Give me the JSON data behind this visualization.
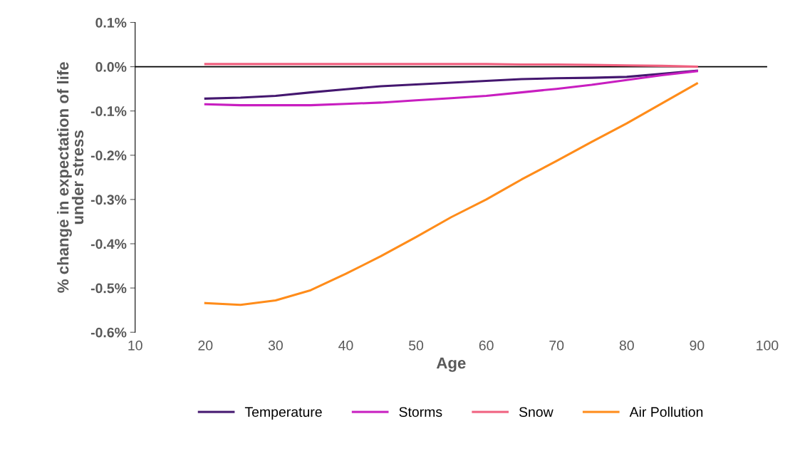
{
  "chart_data": {
    "type": "line",
    "xlabel": "Age",
    "ylabel": "% change in expectation of life\nunder stress",
    "x": [
      20,
      25,
      30,
      35,
      40,
      45,
      50,
      55,
      60,
      65,
      70,
      75,
      80,
      85,
      90
    ],
    "series": [
      {
        "name": "Temperature",
        "color": "#44176f",
        "values": [
          -0.072,
          -0.07,
          -0.066,
          -0.058,
          -0.051,
          -0.044,
          -0.04,
          -0.036,
          -0.032,
          -0.028,
          -0.026,
          -0.025,
          -0.023,
          -0.016,
          -0.009
        ]
      },
      {
        "name": "Storms",
        "color": "#c81ec0",
        "values": [
          -0.085,
          -0.087,
          -0.087,
          -0.087,
          -0.084,
          -0.081,
          -0.076,
          -0.071,
          -0.066,
          -0.058,
          -0.05,
          -0.041,
          -0.03,
          -0.019,
          -0.01
        ]
      },
      {
        "name": "Snow",
        "color": "#f0607f",
        "values": [
          0.006,
          0.006,
          0.006,
          0.006,
          0.006,
          0.006,
          0.006,
          0.006,
          0.006,
          0.005,
          0.005,
          0.004,
          0.003,
          0.002,
          0.0
        ]
      },
      {
        "name": "Air Pollution",
        "color": "#ff8c1a",
        "values": [
          -0.534,
          -0.538,
          -0.528,
          -0.505,
          -0.468,
          -0.428,
          -0.385,
          -0.34,
          -0.3,
          -0.255,
          -0.213,
          -0.17,
          -0.128,
          -0.083,
          -0.038
        ]
      }
    ],
    "xlim": [
      10,
      100
    ],
    "xticks": [
      10,
      20,
      30,
      40,
      50,
      60,
      70,
      80,
      90,
      100
    ],
    "ylim": [
      -0.6,
      0.1
    ],
    "yticks": [
      {
        "value": 0.1,
        "label": "0.1%"
      },
      {
        "value": 0.0,
        "label": "0.0%"
      },
      {
        "value": -0.1,
        "label": "-0.1%"
      },
      {
        "value": -0.2,
        "label": "-0.2%"
      },
      {
        "value": -0.3,
        "label": "-0.3%"
      },
      {
        "value": -0.4,
        "label": "-0.4%"
      },
      {
        "value": -0.5,
        "label": "-0.5%"
      },
      {
        "value": -0.6,
        "label": "-0.6%"
      }
    ],
    "ref_lines": [
      {
        "axis": "y",
        "value": 0.0,
        "color": "#000000"
      }
    ],
    "grid": false,
    "legend": "bottom",
    "marker": "none",
    "line_style": "solid"
  }
}
